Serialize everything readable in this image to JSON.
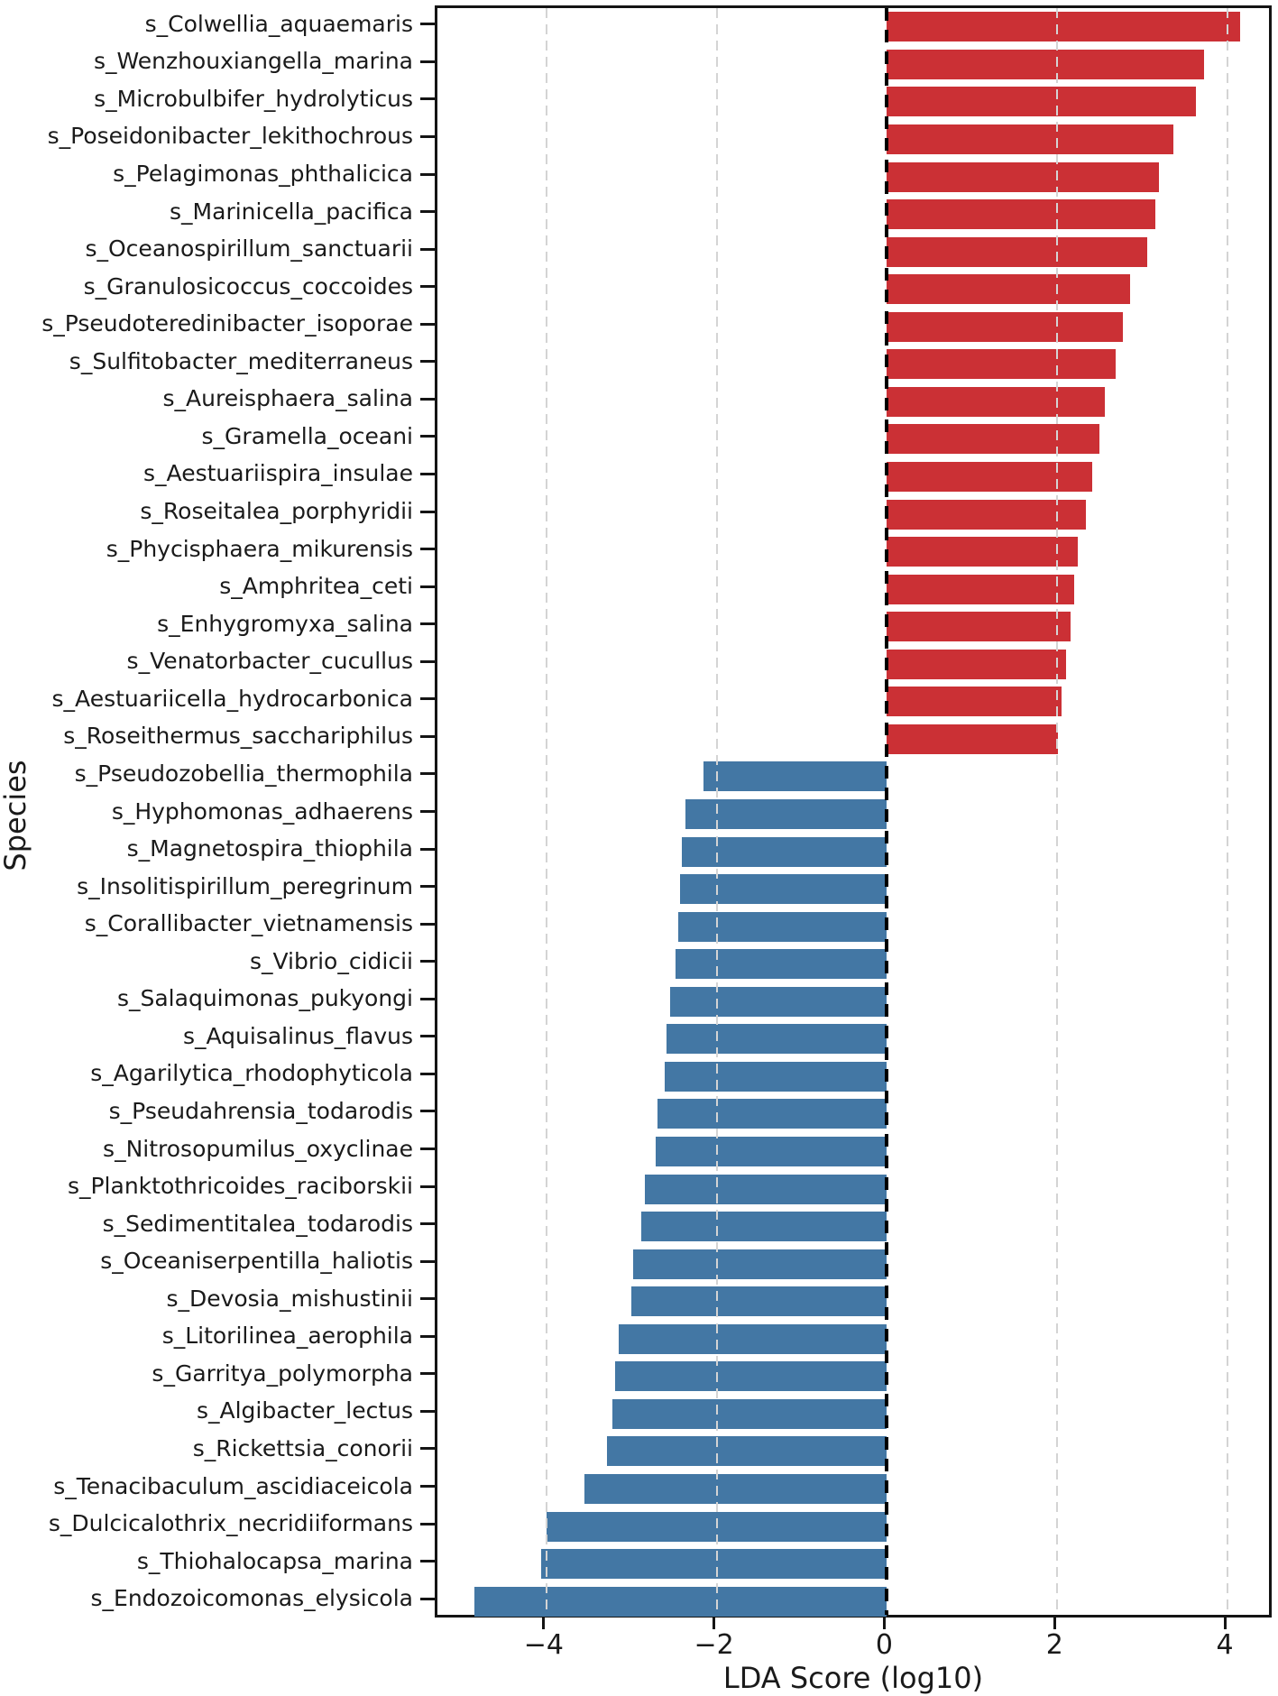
{
  "figure": {
    "x_axis_label": "LDA Score (log10)",
    "y_axis_label": "Species"
  },
  "chart_data": {
    "type": "bar",
    "orientation": "horizontal",
    "title": "",
    "xlabel": "LDA Score (log10)",
    "ylabel": "Species",
    "xlim": [
      -5.28,
      4.55
    ],
    "xticks": [
      -4,
      -2,
      0,
      2,
      4
    ],
    "xtick_labels": [
      "−4",
      "−2",
      "0",
      "2",
      "4"
    ],
    "grid": {
      "vertical_dashed_at": [
        -4,
        -2,
        2,
        4
      ],
      "drawn_over_bars": true
    },
    "zero_line": {
      "at": 0,
      "style": "dashed",
      "color": "#000000"
    },
    "colors": {
      "positive_bar": "#cb3035",
      "negative_bar": "#4377a4",
      "grid_line": "#d4d4d4",
      "axis": "#141414"
    },
    "legend_position": "none",
    "bars": [
      {
        "species": "s_Colwellia_aquaemaris",
        "lda_score": 4.15,
        "group": "positive"
      },
      {
        "species": "s_Wenzhouxiangella_marina",
        "lda_score": 3.72,
        "group": "positive"
      },
      {
        "species": "s_Microbulbifer_hydrolyticus",
        "lda_score": 3.63,
        "group": "positive"
      },
      {
        "species": "s_Poseidonibacter_lekithochrous",
        "lda_score": 3.36,
        "group": "positive"
      },
      {
        "species": "s_Pelagimonas_phthalicica",
        "lda_score": 3.19,
        "group": "positive"
      },
      {
        "species": "s_Marinicella_pacifica",
        "lda_score": 3.15,
        "group": "positive"
      },
      {
        "species": "s_Oceanospirillum_sanctuarii",
        "lda_score": 3.06,
        "group": "positive"
      },
      {
        "species": "s_Granulosicoccus_coccoides",
        "lda_score": 2.85,
        "group": "positive"
      },
      {
        "species": "s_Pseudoteredinibacter_isoporae",
        "lda_score": 2.77,
        "group": "positive"
      },
      {
        "species": "s_Sulfitobacter_mediterraneus",
        "lda_score": 2.69,
        "group": "positive"
      },
      {
        "species": "s_Aureisphaera_salina",
        "lda_score": 2.56,
        "group": "positive"
      },
      {
        "species": "s_Gramella_oceani",
        "lda_score": 2.5,
        "group": "positive"
      },
      {
        "species": "s_Aestuariispira_insulae",
        "lda_score": 2.41,
        "group": "positive"
      },
      {
        "species": "s_Roseitalea_porphyridii",
        "lda_score": 2.34,
        "group": "positive"
      },
      {
        "species": "s_Phycisphaera_mikurensis",
        "lda_score": 2.24,
        "group": "positive"
      },
      {
        "species": "s_Amphritea_ceti",
        "lda_score": 2.2,
        "group": "positive"
      },
      {
        "species": "s_Enhygromyxa_salina",
        "lda_score": 2.16,
        "group": "positive"
      },
      {
        "species": "s_Venatorbacter_cucullus",
        "lda_score": 2.1,
        "group": "positive"
      },
      {
        "species": "s_Aestuariicella_hydrocarbonica",
        "lda_score": 2.05,
        "group": "positive"
      },
      {
        "species": "s_Roseithermus_sacchariphilus",
        "lda_score": 2.01,
        "group": "positive"
      },
      {
        "species": "s_Pseudozobellia_thermophila",
        "lda_score": -2.15,
        "group": "negative"
      },
      {
        "species": "s_Hyphomonas_adhaerens",
        "lda_score": -2.37,
        "group": "negative"
      },
      {
        "species": "s_Magnetospira_thiophila",
        "lda_score": -2.41,
        "group": "negative"
      },
      {
        "species": "s_Insolitispirillum_peregrinum",
        "lda_score": -2.43,
        "group": "negative"
      },
      {
        "species": "s_Corallibacter_vietnamensis",
        "lda_score": -2.45,
        "group": "negative"
      },
      {
        "species": "s_Vibrio_cidicii",
        "lda_score": -2.48,
        "group": "negative"
      },
      {
        "species": "s_Salaquimonas_pukyongi",
        "lda_score": -2.55,
        "group": "negative"
      },
      {
        "species": "s_Aquisalinus_flavus",
        "lda_score": -2.59,
        "group": "negative"
      },
      {
        "species": "s_Agarilytica_rhodophyticola",
        "lda_score": -2.61,
        "group": "negative"
      },
      {
        "species": "s_Pseudahrensia_todarodis",
        "lda_score": -2.7,
        "group": "negative"
      },
      {
        "species": "s_Nitrosopumilus_oxyclinae",
        "lda_score": -2.72,
        "group": "negative"
      },
      {
        "species": "s_Planktothricoides_raciborskii",
        "lda_score": -2.84,
        "group": "negative"
      },
      {
        "species": "s_Sedimentitalea_todarodis",
        "lda_score": -2.89,
        "group": "negative"
      },
      {
        "species": "s_Oceaniserpentilla_haliotis",
        "lda_score": -2.98,
        "group": "negative"
      },
      {
        "species": "s_Devosia_mishustinii",
        "lda_score": -3.0,
        "group": "negative"
      },
      {
        "species": "s_Litorilinea_aerophila",
        "lda_score": -3.15,
        "group": "negative"
      },
      {
        "species": "s_Garritya_polymorpha",
        "lda_score": -3.19,
        "group": "negative"
      },
      {
        "species": "s_Algibacter_lectus",
        "lda_score": -3.23,
        "group": "negative"
      },
      {
        "species": "s_Rickettsia_conorii",
        "lda_score": -3.29,
        "group": "negative"
      },
      {
        "species": "s_Tenacibaculum_ascidiaceicola",
        "lda_score": -3.55,
        "group": "negative"
      },
      {
        "species": "s_Dulcicalothrix_necridiiformans",
        "lda_score": -4.0,
        "group": "negative"
      },
      {
        "species": "s_Thiohalocapsa_marina",
        "lda_score": -4.06,
        "group": "negative"
      },
      {
        "species": "s_Endozoicomonas_elysicola",
        "lda_score": -4.85,
        "group": "negative"
      }
    ]
  }
}
